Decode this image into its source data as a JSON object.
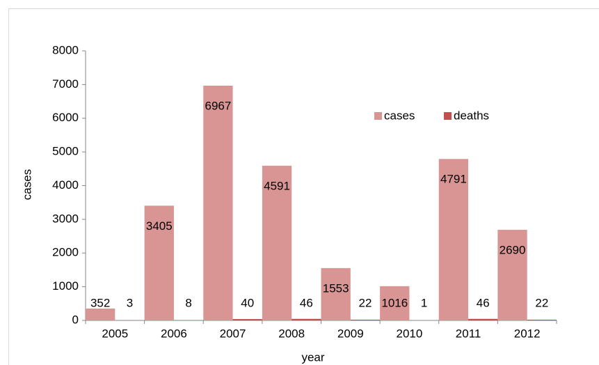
{
  "chart_data": {
    "type": "bar",
    "categories": [
      "2005",
      "2006",
      "2007",
      "2008",
      "2009",
      "2010",
      "2011",
      "2012"
    ],
    "series": [
      {
        "name": "cases",
        "color": "#d99594",
        "values": [
          352,
          3405,
          6967,
          4591,
          1553,
          1016,
          4791,
          2690
        ]
      },
      {
        "name": "deaths",
        "color": "#c0504d",
        "values": [
          3,
          8,
          40,
          46,
          22,
          1,
          46,
          22
        ]
      }
    ],
    "y_label": "cases",
    "x_label": "year",
    "ylim": [
      0,
      8000
    ],
    "yticks": [
      0,
      1000,
      2000,
      3000,
      4000,
      5000,
      6000,
      7000,
      8000
    ],
    "legend": "top-right",
    "grid": false
  }
}
